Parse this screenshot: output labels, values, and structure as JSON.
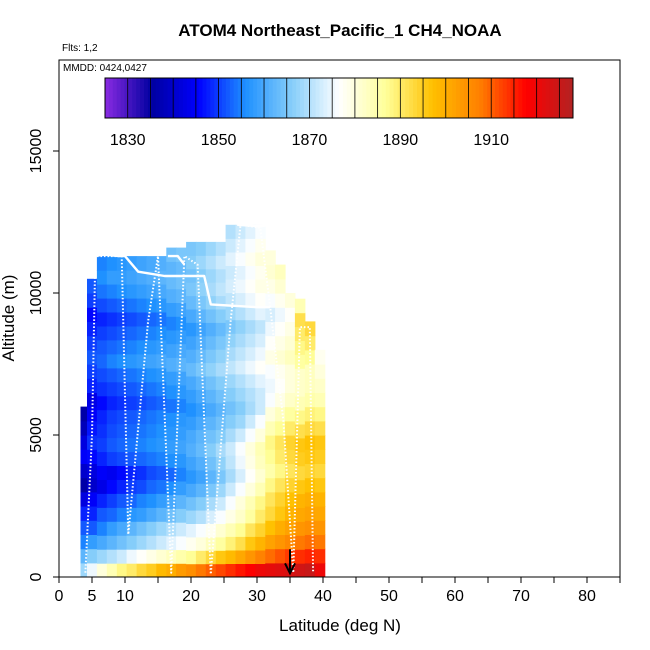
{
  "chart_data": {
    "type": "heatmap",
    "title": "ATOM4 Northeast_Pacific_1 CH4_NOAA",
    "flights_label": "Flts: 1,2",
    "dates_label": "MMDD: 0424,0427",
    "xlabel": "Latitude (deg N)",
    "ylabel": "Altitude (m)",
    "xlim": [
      0,
      85
    ],
    "ylim": [
      0,
      18000
    ],
    "x_ticks": [
      0,
      5,
      10,
      20,
      30,
      40,
      50,
      60,
      70,
      80
    ],
    "x_minor_ticks": [
      15,
      25,
      35,
      45,
      55,
      65,
      75,
      85
    ],
    "y_ticks": [
      0,
      5000,
      10000,
      15000
    ],
    "colorbar": {
      "ticks": [
        1830,
        1850,
        1870,
        1890,
        1910
      ],
      "range": [
        1825,
        1928
      ],
      "colors": [
        "#8a2be2",
        "#0000a0",
        "#0000ff",
        "#1e90ff",
        "#87cefa",
        "#ffffff",
        "#ffff99",
        "#ffc000",
        "#ff8000",
        "#ff0000",
        "#b22222"
      ]
    },
    "columns": [
      {
        "lat": 4.0,
        "top": 6000,
        "values": [
          1868,
          1862,
          1855,
          1852,
          1848,
          1842,
          1836,
          1840,
          1845,
          1842,
          1838,
          1836
        ]
      },
      {
        "lat": 5.0,
        "top": 10500,
        "values": [
          1875,
          1866,
          1858,
          1852,
          1848,
          1845,
          1840,
          1842,
          1846,
          1849,
          1847,
          1845,
          1843,
          1848,
          1850,
          1852,
          1850,
          1848,
          1846,
          1850,
          1852
        ]
      },
      {
        "lat": 6.5,
        "top": 11300,
        "values": [
          1880,
          1868,
          1860,
          1855,
          1852,
          1848,
          1843,
          1845,
          1848,
          1850,
          1849,
          1848,
          1846,
          1849,
          1851,
          1853,
          1852,
          1850,
          1848,
          1851,
          1854,
          1856,
          1855
        ]
      },
      {
        "lat": 8.0,
        "top": 11300,
        "values": [
          1884,
          1870,
          1862,
          1858,
          1853,
          1850,
          1846,
          1844,
          1850,
          1852,
          1851,
          1850,
          1848,
          1850,
          1852,
          1855,
          1853,
          1851,
          1849,
          1852,
          1855,
          1858,
          1856
        ]
      },
      {
        "lat": 9.5,
        "top": 11300,
        "values": [
          1888,
          1872,
          1864,
          1860,
          1855,
          1852,
          1848,
          1846,
          1851,
          1853,
          1852,
          1851,
          1849,
          1851,
          1853,
          1856,
          1854,
          1852,
          1850,
          1853,
          1856,
          1858,
          1857
        ]
      },
      {
        "lat": 11.0,
        "top": 11300,
        "values": [
          1890,
          1875,
          1866,
          1862,
          1857,
          1853,
          1850,
          1848,
          1852,
          1854,
          1853,
          1852,
          1850,
          1852,
          1854,
          1857,
          1855,
          1853,
          1851,
          1854,
          1857,
          1859,
          1858
        ]
      },
      {
        "lat": 12.5,
        "top": 11300,
        "values": [
          1893,
          1877,
          1868,
          1864,
          1858,
          1855,
          1851,
          1849,
          1853,
          1855,
          1854,
          1853,
          1851,
          1853,
          1855,
          1858,
          1856,
          1854,
          1852,
          1855,
          1858,
          1860,
          1859
        ]
      },
      {
        "lat": 14.0,
        "top": 11300,
        "values": [
          1895,
          1879,
          1870,
          1866,
          1860,
          1856,
          1853,
          1851,
          1854,
          1856,
          1855,
          1854,
          1852,
          1854,
          1856,
          1859,
          1857,
          1855,
          1853,
          1856,
          1859,
          1861,
          1860
        ]
      },
      {
        "lat": 15.5,
        "top": 11300,
        "values": [
          1898,
          1881,
          1872,
          1868,
          1862,
          1858,
          1854,
          1852,
          1855,
          1857,
          1856,
          1855,
          1853,
          1855,
          1857,
          1860,
          1858,
          1856,
          1854,
          1857,
          1860,
          1862,
          1861
        ]
      },
      {
        "lat": 17.0,
        "top": 11600,
        "values": [
          1900,
          1883,
          1874,
          1870,
          1864,
          1860,
          1856,
          1853,
          1856,
          1858,
          1857,
          1856,
          1854,
          1856,
          1858,
          1861,
          1859,
          1857,
          1855,
          1858,
          1861,
          1863,
          1862,
          1864
        ]
      },
      {
        "lat": 18.5,
        "top": 11600,
        "values": [
          1903,
          1885,
          1876,
          1872,
          1866,
          1862,
          1858,
          1855,
          1857,
          1859,
          1858,
          1857,
          1855,
          1857,
          1859,
          1862,
          1860,
          1858,
          1856,
          1859,
          1862,
          1864,
          1863,
          1865
        ]
      },
      {
        "lat": 20.0,
        "top": 11800,
        "values": [
          1905,
          1887,
          1878,
          1874,
          1868,
          1864,
          1860,
          1857,
          1859,
          1861,
          1860,
          1858,
          1856,
          1858,
          1860,
          1863,
          1861,
          1859,
          1857,
          1860,
          1863,
          1865,
          1864,
          1866,
          1865
        ]
      },
      {
        "lat": 21.5,
        "top": 11800,
        "values": [
          1908,
          1890,
          1880,
          1876,
          1870,
          1866,
          1862,
          1859,
          1861,
          1863,
          1862,
          1860,
          1858,
          1860,
          1862,
          1865,
          1863,
          1861,
          1859,
          1862,
          1865,
          1867,
          1866,
          1868,
          1866
        ]
      },
      {
        "lat": 23.0,
        "top": 11800,
        "values": [
          1910,
          1893,
          1883,
          1878,
          1873,
          1869,
          1865,
          1862,
          1864,
          1866,
          1864,
          1862,
          1860,
          1862,
          1864,
          1867,
          1865,
          1863,
          1861,
          1864,
          1867,
          1869,
          1868,
          1870,
          1868
        ]
      },
      {
        "lat": 24.5,
        "top": 11800,
        "values": [
          1912,
          1896,
          1886,
          1881,
          1876,
          1872,
          1868,
          1865,
          1867,
          1869,
          1866,
          1864,
          1862,
          1864,
          1866,
          1869,
          1867,
          1865,
          1863,
          1866,
          1869,
          1871,
          1870,
          1872,
          1870
        ]
      },
      {
        "lat": 26.0,
        "top": 12400,
        "values": [
          1914,
          1898,
          1889,
          1884,
          1879,
          1876,
          1872,
          1869,
          1871,
          1872,
          1869,
          1866,
          1864,
          1866,
          1868,
          1871,
          1869,
          1867,
          1865,
          1868,
          1871,
          1873,
          1872,
          1874,
          1872,
          1870
        ]
      },
      {
        "lat": 27.5,
        "top": 12400,
        "values": [
          1916,
          1901,
          1892,
          1887,
          1882,
          1880,
          1876,
          1873,
          1875,
          1876,
          1872,
          1868,
          1866,
          1868,
          1870,
          1873,
          1871,
          1869,
          1867,
          1870,
          1873,
          1875,
          1874,
          1876,
          1874,
          1872
        ]
      },
      {
        "lat": 29.0,
        "top": 12400,
        "values": [
          1918,
          1904,
          1896,
          1891,
          1886,
          1884,
          1880,
          1877,
          1879,
          1880,
          1876,
          1872,
          1869,
          1870,
          1872,
          1875,
          1873,
          1871,
          1869,
          1872,
          1875,
          1877,
          1876,
          1878,
          1876,
          1874
        ]
      },
      {
        "lat": 30.5,
        "top": 12400,
        "values": [
          1920,
          1907,
          1899,
          1894,
          1890,
          1888,
          1884,
          1881,
          1883,
          1884,
          1880,
          1876,
          1872,
          1872,
          1874,
          1877,
          1875,
          1873,
          1871,
          1874,
          1877,
          1879,
          1878,
          1880,
          1878,
          1876
        ]
      },
      {
        "lat": 32.0,
        "top": 11500,
        "values": [
          1921,
          1909,
          1902,
          1897,
          1893,
          1891,
          1888,
          1885,
          1887,
          1888,
          1884,
          1880,
          1876,
          1875,
          1876,
          1879,
          1877,
          1875,
          1873,
          1876,
          1879,
          1881,
          1880
        ]
      },
      {
        "lat": 33.5,
        "top": 11000,
        "values": [
          1922,
          1911,
          1904,
          1900,
          1896,
          1894,
          1891,
          1888,
          1890,
          1891,
          1887,
          1883,
          1879,
          1877,
          1878,
          1881,
          1879,
          1877,
          1875,
          1878,
          1881,
          1883
        ]
      },
      {
        "lat": 35.0,
        "top": 10000,
        "values": [
          1923,
          1913,
          1906,
          1902,
          1899,
          1897,
          1894,
          1891,
          1893,
          1894,
          1890,
          1886,
          1882,
          1880,
          1880,
          1883,
          1881,
          1879,
          1877,
          1880
        ]
      },
      {
        "lat": 36.5,
        "top": 9800,
        "values": [
          1924,
          1914,
          1908,
          1904,
          1901,
          1899,
          1896,
          1893,
          1895,
          1896,
          1892,
          1888,
          1884,
          1882,
          1882,
          1886,
          1888,
          1890,
          1892,
          1884
        ]
      },
      {
        "lat": 38.0,
        "top": 9000,
        "values": [
          1925,
          1915,
          1909,
          1905,
          1902,
          1900,
          1897,
          1894,
          1896,
          1897,
          1893,
          1889,
          1885,
          1883,
          1883,
          1887,
          1890,
          1893
        ]
      },
      {
        "lat": 39.5,
        "top": 8000,
        "values": [
          1920,
          1914,
          1908,
          1904,
          1901,
          1899,
          1896,
          1893,
          1895,
          1896,
          1892,
          1888,
          1884,
          1882,
          1880,
          1878
        ]
      }
    ],
    "flight_tracks": [
      {
        "style": "solid",
        "points": [
          [
            5.0,
            11300
          ],
          [
            7.0,
            11350
          ],
          [
            9.0,
            11300
          ],
          [
            10.0,
            11300
          ],
          [
            12.0,
            10750
          ],
          [
            16.0,
            10600
          ],
          [
            22.0,
            10600
          ],
          [
            23.0,
            9600
          ],
          [
            30.0,
            9500
          ],
          [
            32.0,
            9500
          ]
        ]
      },
      {
        "style": "solid",
        "points": [
          [
            16.5,
            11300
          ],
          [
            18.0,
            11300
          ],
          [
            19.0,
            11000
          ]
        ]
      },
      {
        "style": "solid",
        "points": [
          [
            27.0,
            12400
          ],
          [
            30.5,
            12350
          ],
          [
            32.0,
            12400
          ]
        ]
      },
      {
        "style": "dotted",
        "points": [
          [
            4.0,
            150
          ],
          [
            5.0,
            5000
          ],
          [
            5.5,
            11300
          ],
          [
            8.0,
            11300
          ],
          [
            9.5,
            11300
          ],
          [
            10.5,
            1500
          ],
          [
            13.5,
            9000
          ],
          [
            15.0,
            11300
          ],
          [
            17.0,
            150
          ],
          [
            19.0,
            11300
          ],
          [
            21.0,
            11000
          ],
          [
            23.0,
            100
          ],
          [
            26.0,
            9000
          ],
          [
            27.5,
            12400
          ],
          [
            30.5,
            12300
          ],
          [
            32.0,
            9500
          ],
          [
            34.0,
            5500
          ],
          [
            35.5,
            150
          ],
          [
            36.5,
            8800
          ],
          [
            38.0,
            8800
          ],
          [
            38.5,
            150
          ]
        ]
      }
    ],
    "markers": [
      {
        "type": "arrow-down",
        "lat": 35.0,
        "alt": 200
      }
    ]
  }
}
